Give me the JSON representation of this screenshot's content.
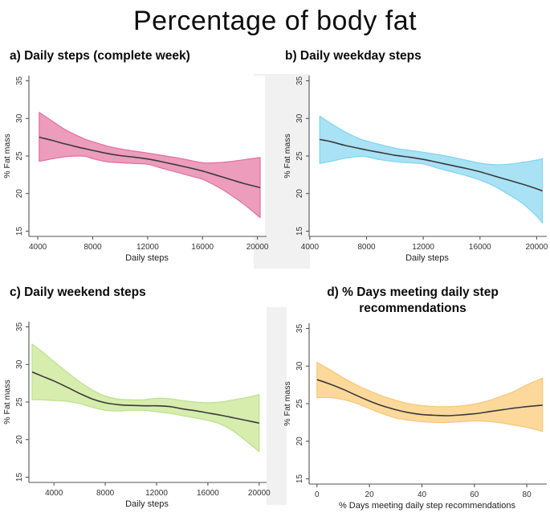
{
  "page_title": "Percentage of body fat",
  "colors": {
    "line": "#3a3a3a",
    "axis": "#555555",
    "tick_text": "#333333",
    "label_text": "#222222",
    "divider_tint": "#f1f1f2",
    "plot_background": "#ffffff"
  },
  "chart_data": [
    {
      "id": "a",
      "type": "line",
      "title": "a) Daily steps (complete week)",
      "title_lines": [
        "a) Daily steps (complete week)"
      ],
      "xlabel": "Daily steps",
      "ylabel": "% Fat mass",
      "xlim": [
        3350,
        20550
      ],
      "ylim": [
        14.3,
        35.7
      ],
      "xticks": [
        4000,
        8000,
        12000,
        16000,
        20000
      ],
      "yticks": [
        15,
        20,
        25,
        30,
        35
      ],
      "band_fill": "#ec9dbc",
      "band_edge": "#e0709e",
      "x": [
        4100,
        5000,
        6000,
        7000,
        7500,
        8000,
        9000,
        10000,
        11000,
        12000,
        13000,
        14000,
        15000,
        16000,
        17000,
        18000,
        19000,
        20200
      ],
      "mean": [
        27.5,
        27.1,
        26.6,
        26.15,
        25.95,
        25.75,
        25.35,
        25.05,
        24.85,
        24.6,
        24.25,
        23.85,
        23.45,
        23.0,
        22.45,
        21.9,
        21.35,
        20.8
      ],
      "upper": [
        30.8,
        29.7,
        28.5,
        27.6,
        27.2,
        26.9,
        26.35,
        25.95,
        25.65,
        25.4,
        25.1,
        24.8,
        24.45,
        24.1,
        24.1,
        24.25,
        24.5,
        24.8
      ],
      "lower": [
        24.3,
        24.6,
        24.9,
        25.0,
        24.95,
        24.65,
        24.25,
        24.1,
        24.0,
        23.9,
        23.4,
        22.9,
        22.4,
        21.9,
        21.0,
        19.9,
        18.6,
        16.8
      ]
    },
    {
      "id": "b",
      "type": "line",
      "title": "b) Daily weekday steps",
      "title_lines": [
        "b) Daily weekday steps"
      ],
      "xlabel": "Daily steps",
      "ylabel": "% Fat mass",
      "xlim": [
        3950,
        20600
      ],
      "ylim": [
        14.3,
        35.7
      ],
      "xticks": [
        4000,
        8000,
        12000,
        16000,
        20000
      ],
      "yticks": [
        15,
        20,
        25,
        30,
        35
      ],
      "band_fill": "#a9e2f5",
      "band_edge": "#7fd4f0",
      "x": [
        4700,
        5500,
        6500,
        7500,
        8000,
        9000,
        10000,
        11000,
        12000,
        13000,
        14000,
        15000,
        16000,
        17000,
        18000,
        19000,
        20000,
        20400
      ],
      "mean": [
        27.2,
        26.9,
        26.4,
        26.0,
        25.8,
        25.45,
        25.1,
        24.85,
        24.55,
        24.15,
        23.75,
        23.35,
        22.9,
        22.35,
        21.8,
        21.25,
        20.65,
        20.35
      ],
      "upper": [
        30.3,
        29.3,
        28.2,
        27.3,
        27.0,
        26.5,
        26.05,
        25.75,
        25.5,
        25.2,
        24.85,
        24.45,
        24.05,
        23.85,
        23.9,
        24.15,
        24.45,
        24.65
      ],
      "lower": [
        24.0,
        24.3,
        24.7,
        24.95,
        24.9,
        24.5,
        24.25,
        24.1,
        23.95,
        23.4,
        22.9,
        22.4,
        21.8,
        21.0,
        19.9,
        18.7,
        17.0,
        16.1
      ]
    },
    {
      "id": "c",
      "type": "line",
      "title": "c) Daily weekend steps",
      "title_lines": [
        "c) Daily weekend steps"
      ],
      "xlabel": "Daily steps",
      "ylabel": "% Fat mass",
      "xlim": [
        2050,
        20450
      ],
      "ylim": [
        14.3,
        35.7
      ],
      "xticks": [
        4000,
        8000,
        12000,
        16000,
        20000
      ],
      "yticks": [
        15,
        20,
        25,
        30,
        35
      ],
      "band_fill": "#d6edae",
      "band_edge": "#bce18b",
      "x": [
        2300,
        3000,
        4000,
        5000,
        6000,
        7000,
        8000,
        9000,
        10000,
        11000,
        12000,
        13000,
        14000,
        15000,
        16000,
        17000,
        18000,
        19000,
        20000
      ],
      "mean": [
        29.0,
        28.5,
        27.8,
        27.0,
        26.15,
        25.4,
        24.9,
        24.65,
        24.55,
        24.5,
        24.5,
        24.4,
        24.1,
        23.85,
        23.55,
        23.25,
        22.9,
        22.55,
        22.2
      ],
      "upper": [
        32.7,
        31.8,
        30.4,
        29.0,
        27.7,
        26.6,
        25.8,
        25.4,
        25.3,
        25.3,
        25.5,
        25.45,
        25.2,
        25.0,
        24.9,
        25.0,
        25.3,
        25.6,
        26.0
      ],
      "lower": [
        25.3,
        25.3,
        25.2,
        25.1,
        24.8,
        24.3,
        23.9,
        23.8,
        23.9,
        23.9,
        23.7,
        23.5,
        23.2,
        22.9,
        22.55,
        22.05,
        21.1,
        19.8,
        18.4
      ]
    },
    {
      "id": "d",
      "type": "line",
      "title": "d) % Days meeting daily step recommendations",
      "title_lines": [
        "d) % Days meeting daily step",
        "recommendations"
      ],
      "xlabel": "% Days meeting daily step recommendations",
      "ylabel": "% Fat mass",
      "xlim": [
        -3,
        87
      ],
      "ylim": [
        14.3,
        35.7
      ],
      "xticks": [
        0,
        20,
        40,
        60,
        80
      ],
      "yticks": [
        15,
        20,
        25,
        30,
        35
      ],
      "band_fill": "#fcd99b",
      "band_edge": "#f6c678",
      "x": [
        0,
        5,
        10,
        15,
        20,
        25,
        30,
        35,
        40,
        45,
        50,
        55,
        60,
        65,
        70,
        75,
        80,
        86
      ],
      "mean": [
        28.2,
        27.6,
        26.9,
        26.1,
        25.35,
        24.7,
        24.2,
        23.8,
        23.55,
        23.45,
        23.4,
        23.5,
        23.65,
        23.9,
        24.15,
        24.4,
        24.6,
        24.8
      ],
      "upper": [
        30.5,
        29.5,
        28.45,
        27.5,
        26.7,
        26.0,
        25.45,
        25.0,
        24.75,
        24.6,
        24.6,
        24.7,
        24.95,
        25.35,
        25.95,
        26.6,
        27.5,
        28.4
      ],
      "lower": [
        25.8,
        25.8,
        25.55,
        25.05,
        24.35,
        23.65,
        23.1,
        22.8,
        22.6,
        22.5,
        22.5,
        22.6,
        22.7,
        22.65,
        22.45,
        22.15,
        21.85,
        21.3
      ]
    }
  ]
}
